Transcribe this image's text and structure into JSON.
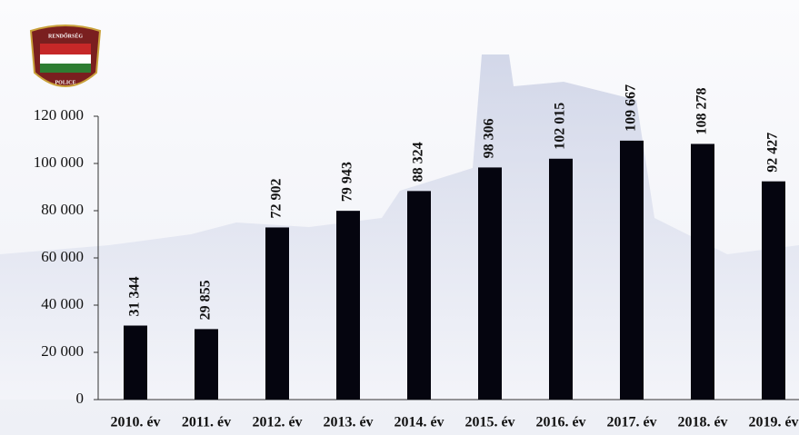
{
  "logo": {
    "top": "RENDŐRSÉG",
    "bottom": "POLICE"
  },
  "chart_data": {
    "type": "bar",
    "categories": [
      "2010. év",
      "2011. év",
      "2012. év",
      "2013. év",
      "2014. év",
      "2015. év",
      "2016. év",
      "2017. év",
      "2018. év",
      "2019. év"
    ],
    "values": [
      31344,
      29855,
      72902,
      79943,
      88324,
      98306,
      102015,
      109667,
      108278,
      92427
    ],
    "value_labels": [
      "31 344",
      "29 855",
      "72 902",
      "79 943",
      "88 324",
      "98 306",
      "102 015",
      "109 667",
      "108 278",
      "92 427"
    ],
    "color": "#05050f",
    "ylim": [
      0,
      120000
    ],
    "yticks": [
      0,
      {
        "value": 20000,
        "label": "20 000"
      },
      {
        "value": 40000,
        "label": "40 000"
      },
      {
        "value": 60000,
        "label": "60 000"
      },
      {
        "value": 80000,
        "label": "80 000"
      },
      {
        "value": 100000,
        "label": "100 000"
      },
      {
        "value": 120000,
        "label": "120 000"
      }
    ]
  }
}
